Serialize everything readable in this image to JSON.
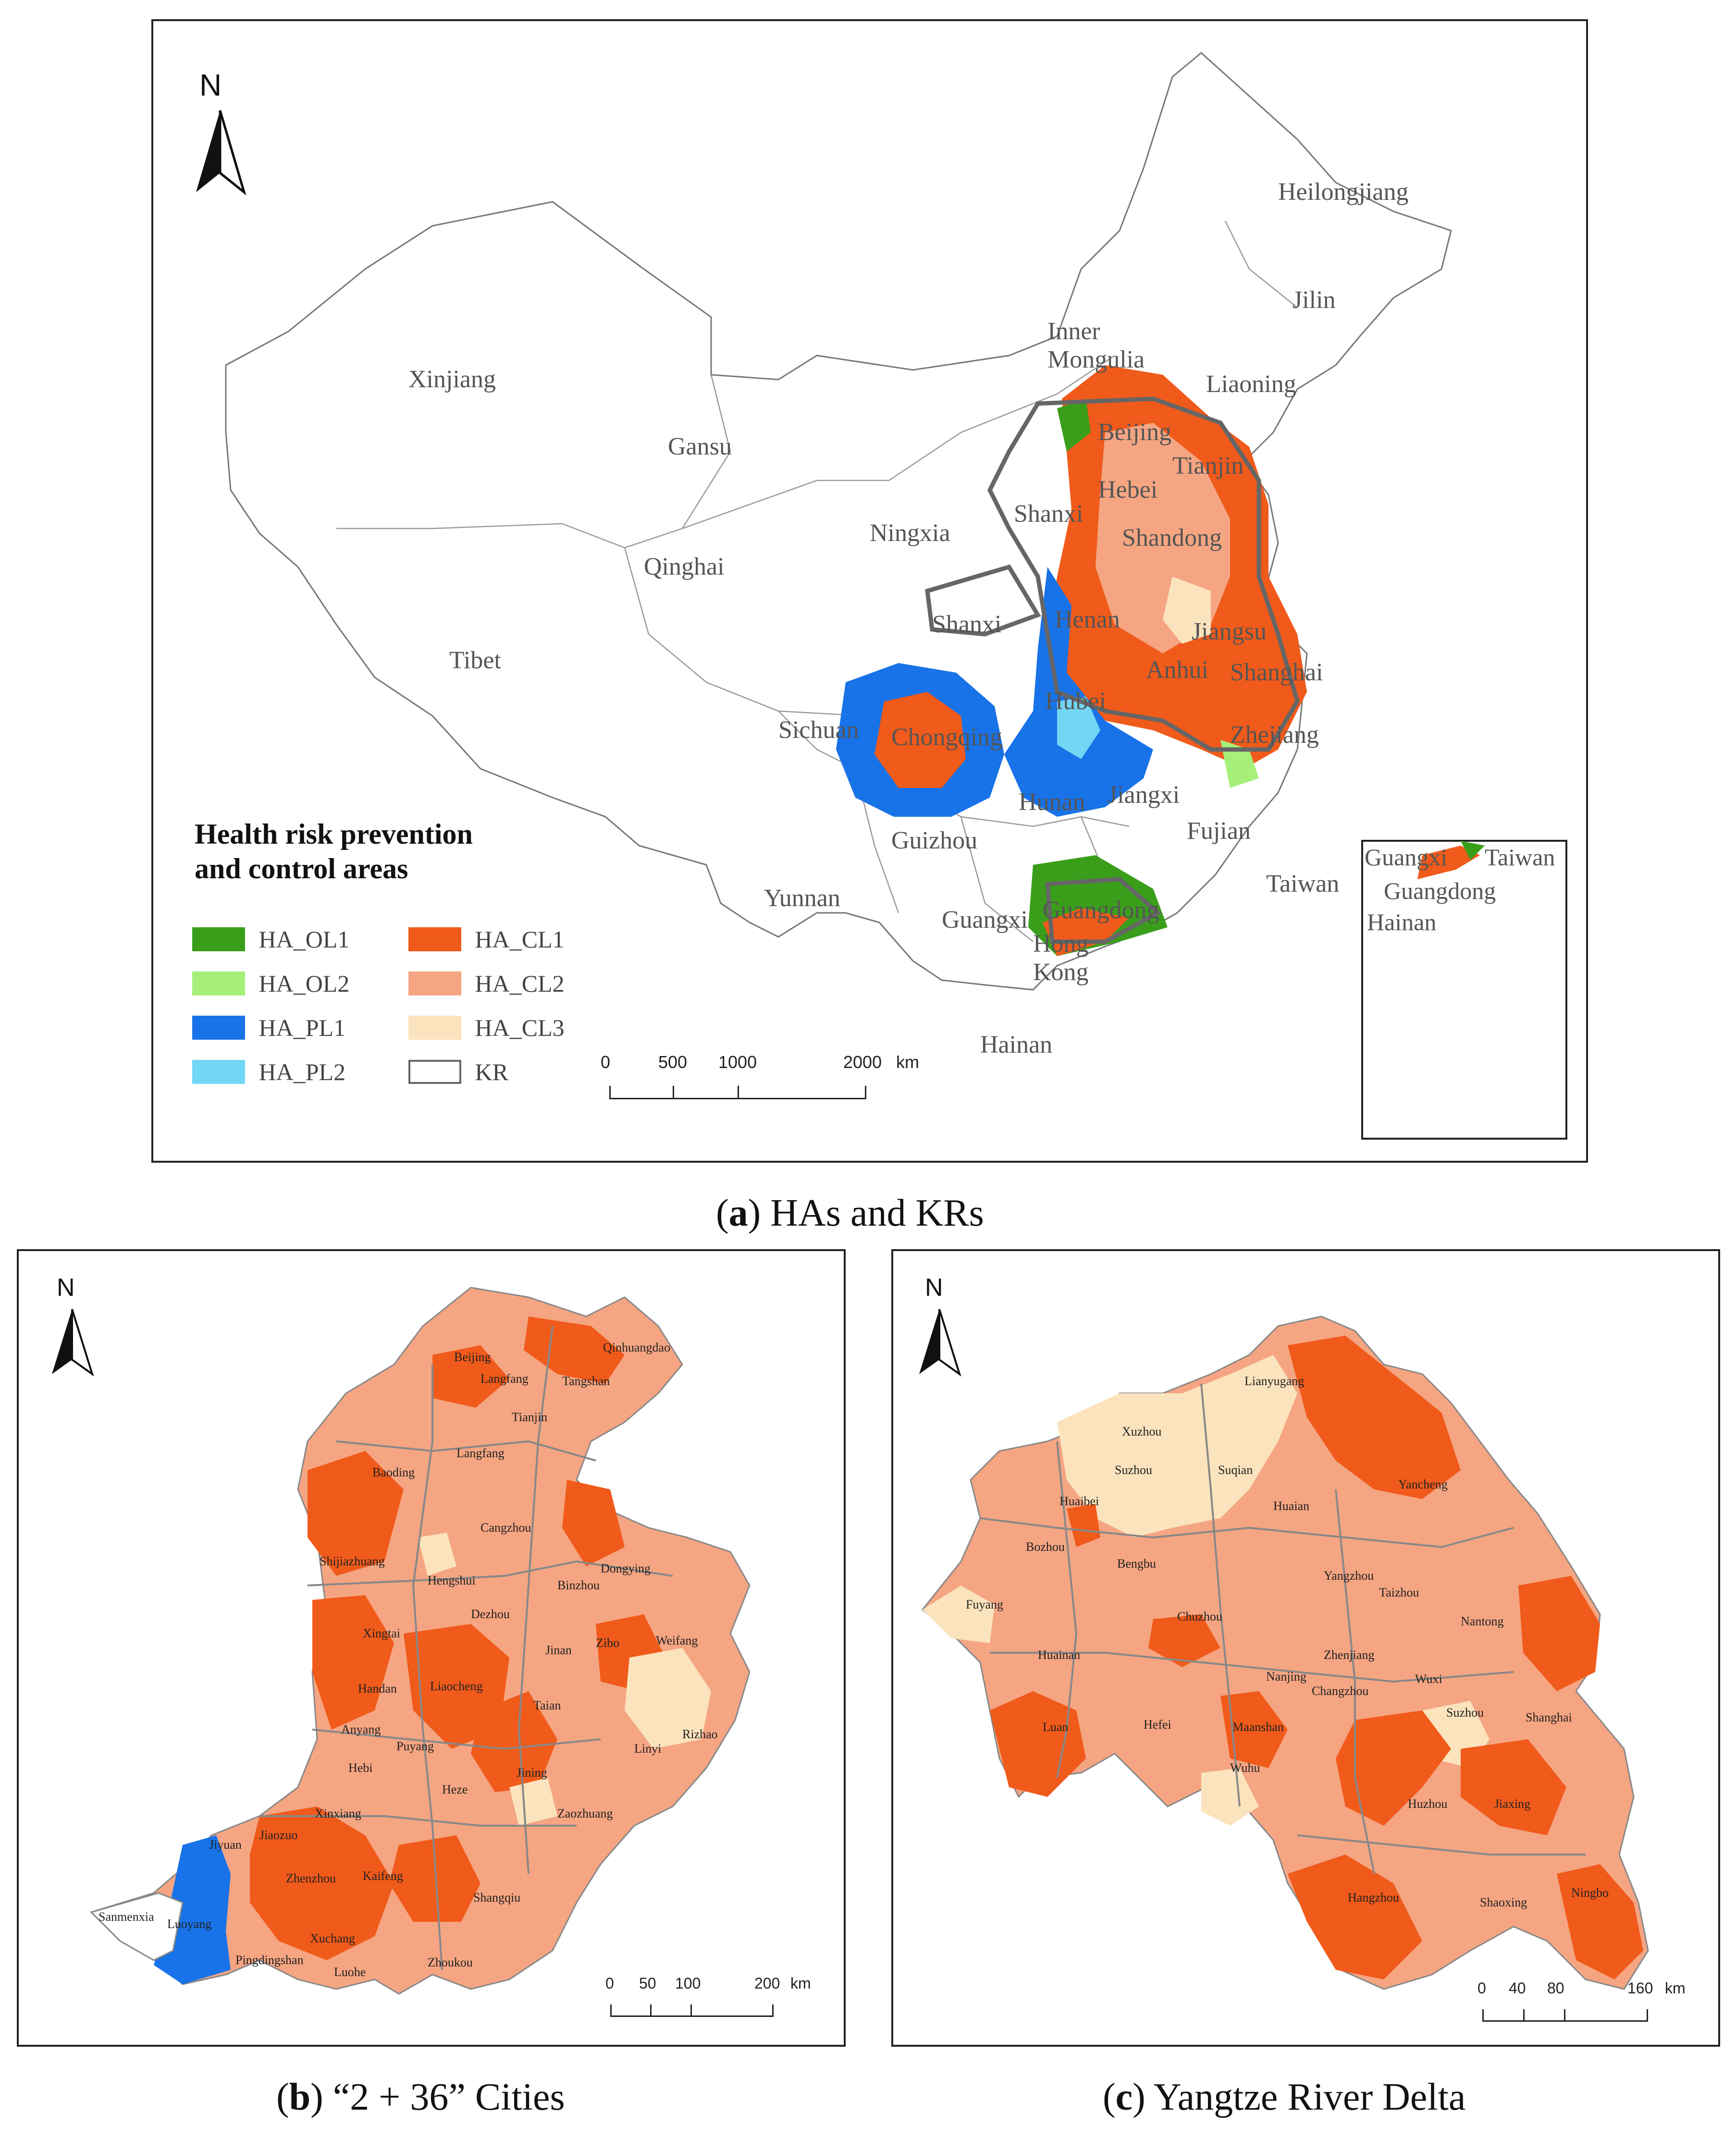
{
  "panel_a": {
    "caption_letter": "a",
    "caption_text": "HAs and KRs",
    "north": "N",
    "legend_title_1": "Health risk prevention",
    "legend_title_2": "and control areas",
    "legend": [
      {
        "label": "HA_OL1",
        "color": "#3a9e1a"
      },
      {
        "label": "HA_OL2",
        "color": "#a6f07a"
      },
      {
        "label": "HA_PL1",
        "color": "#1872e8"
      },
      {
        "label": "HA_PL2",
        "color": "#72d6f5"
      },
      {
        "label": "HA_CL1",
        "color": "#f05a1a"
      },
      {
        "label": "HA_CL2",
        "color": "#f5a582"
      },
      {
        "label": "HA_CL3",
        "color": "#fbe3bd"
      },
      {
        "label": "KR",
        "color": "#ffffff",
        "border": "#666666"
      }
    ],
    "scale_ticks": [
      "0",
      "500",
      "1000",
      "2000"
    ],
    "scale_unit": "km",
    "provinces": [
      "Heilongjiang",
      "Jilin",
      "Inner Mongulia",
      "Liaoning",
      "Xinjiang",
      "Gansu",
      "Beijing",
      "Tianjin",
      "Hebei",
      "Shanxi",
      "Ningxia",
      "Shandong",
      "Qinghai",
      "Shanxi",
      "Henan",
      "Jiangsu",
      "Tibet",
      "Anhui",
      "Shanghai",
      "Sichuan",
      "Hubei",
      "Chongqing",
      "Zhejiang",
      "Hunan",
      "Jiangxi",
      "Guizhou",
      "Fujian",
      "Yunnan",
      "Guangxi",
      "Guangdong",
      "Hong Kong",
      "Taiwan",
      "Hainan"
    ],
    "inset_labels": [
      "Guangxi",
      "Taiwan",
      "Guangdong",
      "Hainan"
    ]
  },
  "panel_b": {
    "caption_letter": "b",
    "caption_text": "“2 + 36” Cities",
    "north": "N",
    "cities": [
      "Qinhuangdao",
      "Beijing",
      "Tangshan",
      "Langfang",
      "Tianjin",
      "Langfang",
      "Baoding",
      "Cangzhou",
      "Shijiazhuang",
      "Hengshui",
      "Dongying",
      "Binzhou",
      "Dezhou",
      "Xingtai",
      "Zibo",
      "Weifang",
      "Jinan",
      "Handan",
      "Liaocheng",
      "Taian",
      "Rizhao",
      "Anyang",
      "Puyang",
      "Linyi",
      "Hebi",
      "Jining",
      "Heze",
      "Xinxiang",
      "Zaozhuang",
      "Jiyuan",
      "Jiaozuo",
      "Zhenzhou",
      "Kaifeng",
      "Shangqiu",
      "Sanmenxia",
      "Luoyang",
      "Xuchang",
      "Pingdingshan",
      "Luohe",
      "Zhoukou"
    ],
    "scale_ticks": [
      "0",
      "50",
      "100",
      "200"
    ],
    "scale_unit": "km"
  },
  "panel_c": {
    "caption_letter": "c",
    "caption_text": "Yangtze River Delta",
    "north": "N",
    "cities": [
      "Lianyugang",
      "Xuzhou",
      "Suzhou",
      "Suqian",
      "Huaibei",
      "Huaian",
      "Yancheng",
      "Bozhou",
      "Bengbu",
      "Yangzhou",
      "Taizhou",
      "Fuyang",
      "Chuzhou",
      "Nantong",
      "Huainan",
      "Zhenjiang",
      "Nanjing",
      "Changzhou",
      "Wuxi",
      "Suzhou",
      "Shanghai",
      "Luan",
      "Hefei",
      "Maanshan",
      "Wuhu",
      "Huzhou",
      "Jiaxing",
      "Hangzhou",
      "Shaoxing",
      "Ningbo"
    ],
    "scale_ticks": [
      "0",
      "40",
      "80",
      "160"
    ],
    "scale_unit": "km"
  }
}
